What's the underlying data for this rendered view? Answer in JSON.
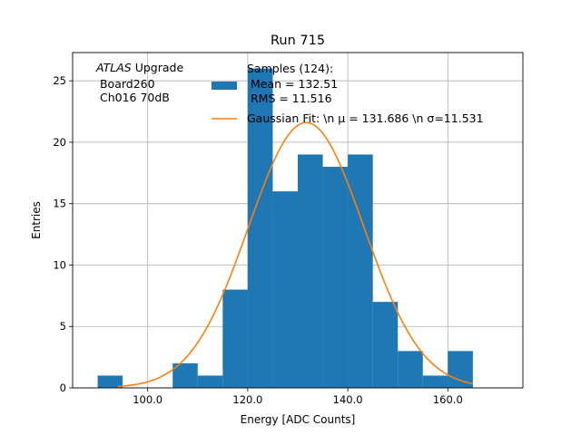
{
  "chart_data": {
    "type": "bar",
    "title": "Run 715",
    "xlabel": "Energy [ADC Counts]",
    "ylabel": "Entries",
    "xlim": [
      85,
      175
    ],
    "ylim": [
      0,
      27.3
    ],
    "grid": true,
    "xticks": [
      100,
      120,
      140,
      160
    ],
    "xtick_labels": [
      "100.0",
      "120.0",
      "140.0",
      "160.0"
    ],
    "yticks": [
      0,
      5,
      10,
      15,
      20,
      25
    ],
    "yticks_labels": [
      "0",
      "5",
      "10",
      "15",
      "20",
      "25"
    ],
    "bin_width": 5,
    "bins": [
      {
        "start": 90,
        "count": 1
      },
      {
        "start": 95,
        "count": 0
      },
      {
        "start": 100,
        "count": 0
      },
      {
        "start": 105,
        "count": 2
      },
      {
        "start": 110,
        "count": 1
      },
      {
        "start": 115,
        "count": 8
      },
      {
        "start": 120,
        "count": 26
      },
      {
        "start": 125,
        "count": 16
      },
      {
        "start": 130,
        "count": 19
      },
      {
        "start": 135,
        "count": 18
      },
      {
        "start": 140,
        "count": 19
      },
      {
        "start": 145,
        "count": 7
      },
      {
        "start": 150,
        "count": 3
      },
      {
        "start": 155,
        "count": 1
      },
      {
        "start": 160,
        "count": 3
      }
    ],
    "fit": {
      "mu": 131.686,
      "sigma": 11.531,
      "amplitude": 21.6,
      "x_range": [
        94,
        165
      ]
    },
    "colors": {
      "bars": "#1f77b4",
      "fit": "#ff7f0e",
      "grid": "#b0b0b0"
    },
    "annotation": {
      "line1_italic": "ATLAS",
      "line1_rest": " Upgrade",
      "line2": " Board260",
      "line3": " Ch016 70dB"
    },
    "legend": {
      "placement": "top-right",
      "samples": [
        "Samples (124):",
        " Mean = 132.51",
        " RMS = 11.516"
      ],
      "fit_label": "Gaussian Fit: \\n μ = 131.686 \\n σ=11.531"
    }
  }
}
